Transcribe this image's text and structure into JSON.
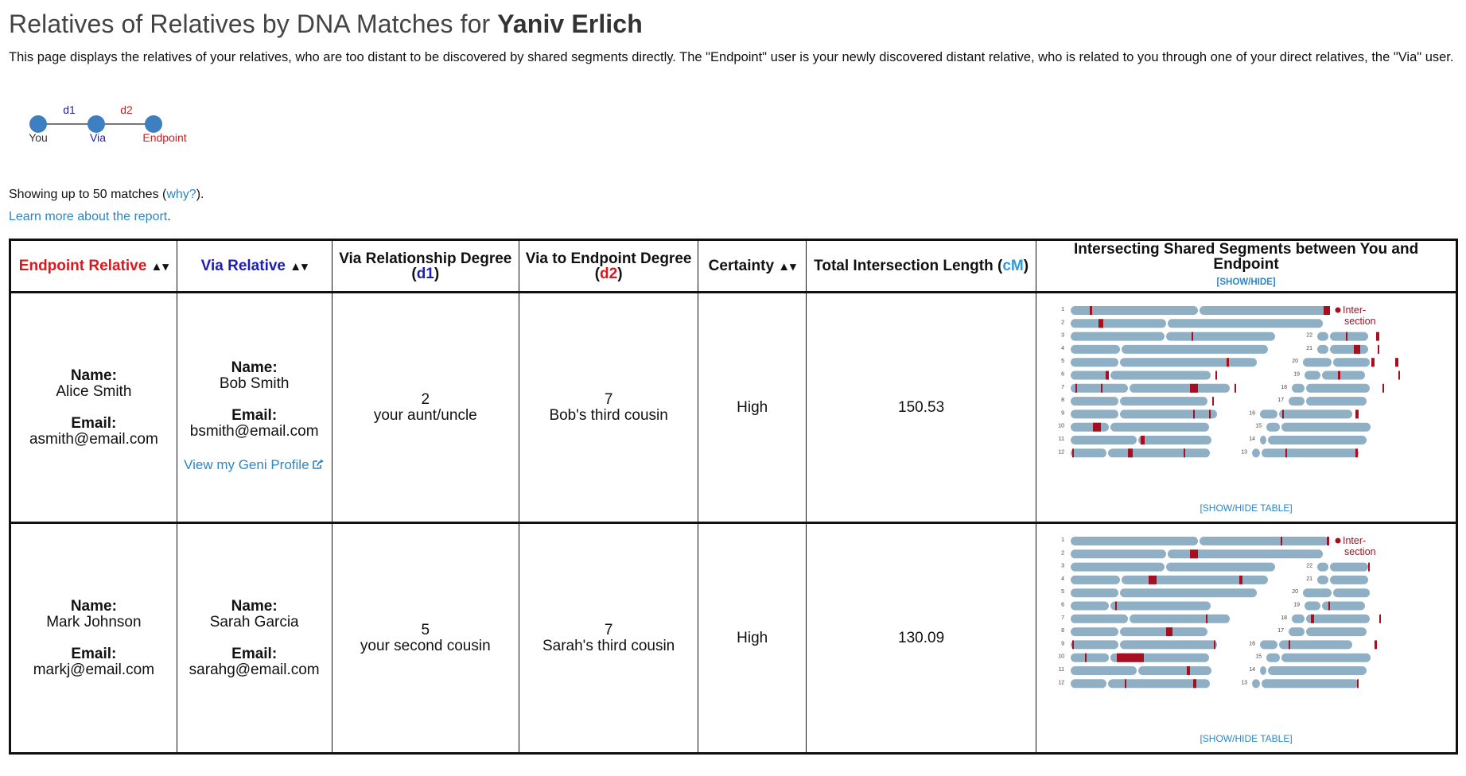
{
  "header": {
    "title_prefix": "Relatives of Relatives by DNA Matches for ",
    "user_name": "Yaniv Erlich",
    "intro": "This page displays the relatives of your relatives, who are too distant to be discovered by shared segments directly. The \"Endpoint\" user is your newly discovered distant relative, who is related to you through one of your direct relatives, the \"Via\" user."
  },
  "diagram": {
    "labels": {
      "you": "You",
      "via": "Via",
      "endpoint": "Endpoint",
      "d1": "d1",
      "d2": "d2"
    },
    "colors": {
      "node": "#3e7fc1",
      "via": "#1d1db8",
      "endpoint": "#e0161e",
      "line": "#777777"
    }
  },
  "meta": {
    "showing_prefix": "Showing up to 50 matches (",
    "why_link": "why?",
    "showing_suffix": ").",
    "learn_more": "Learn more about the report",
    "learn_more_suffix": "."
  },
  "table": {
    "headers": {
      "endpoint": "Endpoint Relative",
      "via": "Via Relative",
      "via_degree_line1": "Via Relationship Degree",
      "via_degree_code": "d1",
      "endpoint_degree_line1": "Via to Endpoint Degree",
      "endpoint_degree_code": "d2",
      "certainty": "Certainty",
      "total_length": "Total Intersection Length (",
      "total_length_unit": "cM",
      "total_length_close": ")",
      "segments": "Intersecting Shared Segments between You and Endpoint",
      "segments_toggle": "[SHOW/HIDE]",
      "sort_glyph": "▲▾",
      "paren_open": "(",
      "paren_close": ")"
    },
    "labels": {
      "name": "Name:",
      "email": "Email:"
    },
    "rows": [
      {
        "endpoint_name": "Alice Smith",
        "endpoint_email": "asmith@email.com",
        "via_name": "Bob Smith",
        "via_email": "bsmith@email.com",
        "via_profile_link": "View my Geni Profile",
        "via_degree": "2",
        "via_degree_text": "your aunt/uncle",
        "endpoint_degree": "7",
        "endpoint_degree_text": "Bob's third cousin",
        "certainty": "High",
        "total_length": "150.53",
        "show_table": "[SHOW/HIDE TABLE]"
      },
      {
        "endpoint_name": "Mark Johnson",
        "endpoint_email": "markj@email.com",
        "via_name": "Sarah Garcia",
        "via_email": "sarahg@email.com",
        "via_degree": "5",
        "via_degree_text": "your second cousin",
        "endpoint_degree": "7",
        "endpoint_degree_text": "Sarah's third cousin",
        "certainty": "High",
        "total_length": "130.09",
        "show_table": "[SHOW/HIDE TABLE]"
      }
    ]
  },
  "karyotype": {
    "legend_line1": "Inter-",
    "legend_line2": "section",
    "chromosome_labels": [
      "1",
      "2",
      "3",
      "4",
      "5",
      "6",
      "7",
      "8",
      "9",
      "10",
      "11",
      "12",
      "13",
      "14",
      "15",
      "16",
      "17",
      "18",
      "19",
      "20",
      "21",
      "22"
    ],
    "colors": {
      "chromosome": "#8fb0c4",
      "intersection": "#a50f1f"
    }
  }
}
